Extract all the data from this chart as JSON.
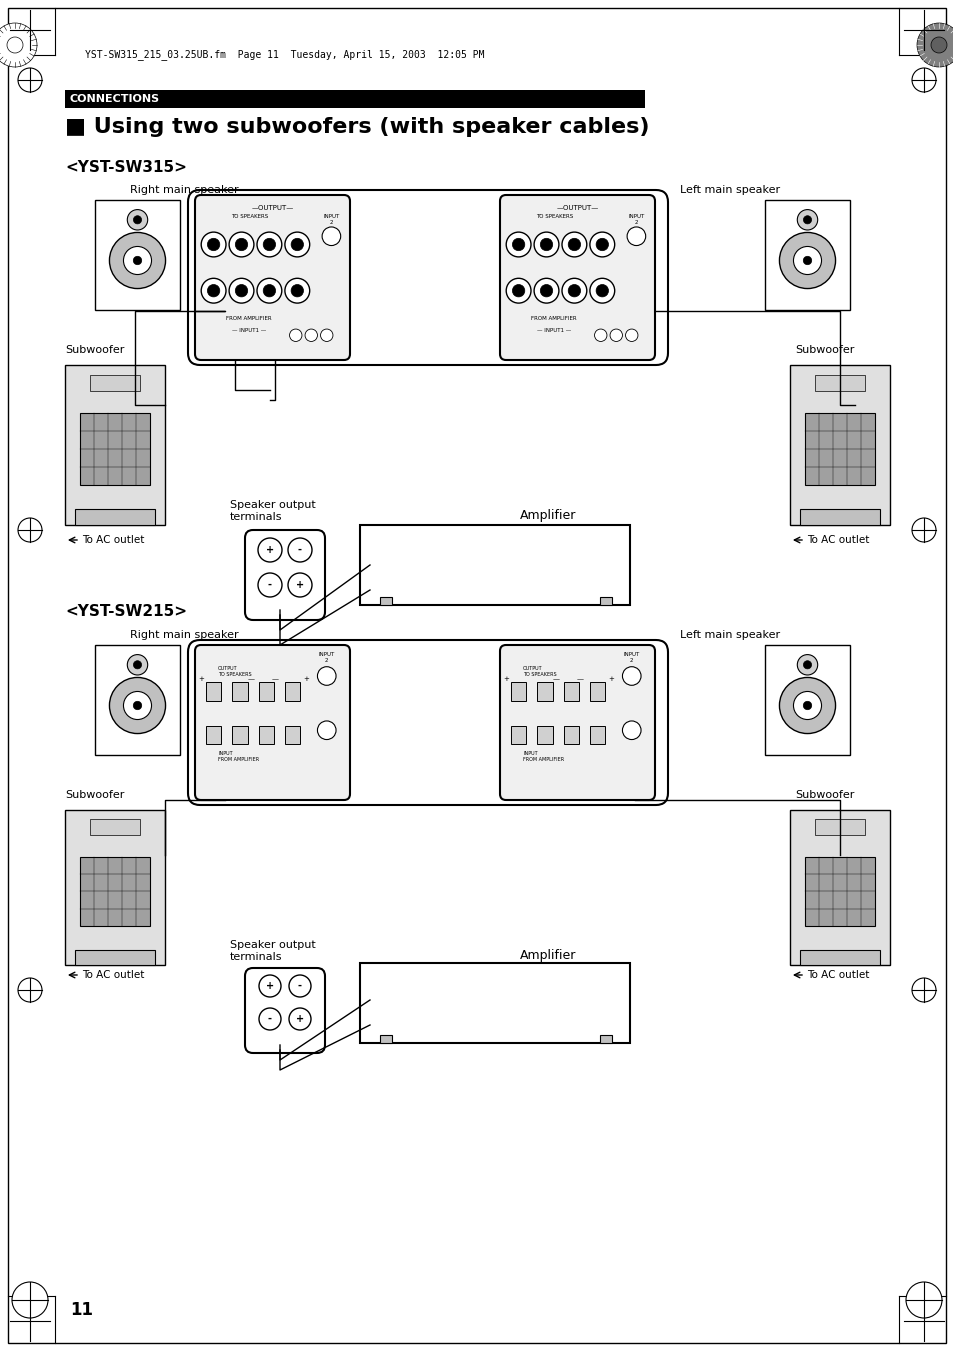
{
  "page_bg": "#ffffff",
  "header_bar_color": "#000000",
  "header_text": "CONNECTIONS",
  "header_text_color": "#ffffff",
  "title": "■ Using two subwoofers (with speaker cables)",
  "section1_label": "<YST-SW315>",
  "section2_label": "<YST-SW215>",
  "file_info": "YST-SW315_215_03.25UB.fm  Page 11  Tuesday, April 15, 2003  12:05 PM",
  "page_number": "11",
  "labels": {
    "right_main_speaker": "Right main speaker",
    "left_main_speaker": "Left main speaker",
    "subwoofer": "Subwoofer",
    "speaker_output": "Speaker output\nterminals",
    "amplifier": "Amplifier",
    "to_ac_outlet": "To AC outlet"
  },
  "border_color": "#000000",
  "light_gray": "#d0d0d0",
  "dark_gray": "#808080",
  "mid_gray": "#b0b0b0"
}
